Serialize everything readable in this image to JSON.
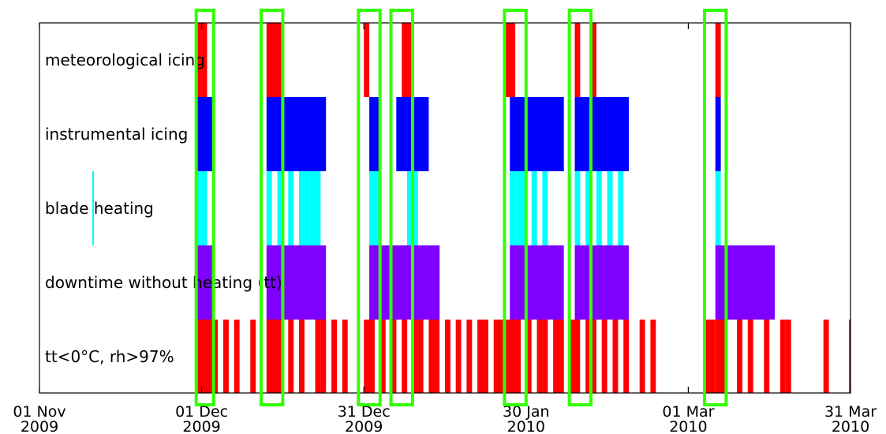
{
  "chart_data": {
    "type": "timeline",
    "x_axis": {
      "range": [
        "2009-11-01",
        "2010-03-31"
      ],
      "ticks": [
        {
          "date": "2009-11-01",
          "line1": "01 Nov",
          "line2": "2009"
        },
        {
          "date": "2009-12-01",
          "line1": "01 Dec",
          "line2": "2009"
        },
        {
          "date": "2009-12-31",
          "line1": "31 Dec",
          "line2": "2009"
        },
        {
          "date": "2010-01-30",
          "line1": "30 Jan",
          "line2": "2010"
        },
        {
          "date": "2010-03-01",
          "line1": "01 Mar",
          "line2": "2010"
        },
        {
          "date": "2010-03-31",
          "line1": "31 Mar",
          "line2": "2010"
        }
      ]
    },
    "grid": false,
    "rows": [
      {
        "label": "meteorological icing",
        "color": "#ff0000",
        "intervals": [
          [
            "2009-11-30",
            "2009-12-01"
          ],
          [
            "2009-12-01",
            "2009-12-02"
          ],
          [
            "2009-12-13",
            "2009-12-16"
          ],
          [
            "2009-12-31",
            "2010-01-01"
          ],
          [
            "2010-01-07",
            "2010-01-09"
          ],
          [
            "2010-01-26",
            "2010-01-28"
          ],
          [
            "2010-02-08",
            "2010-02-09"
          ],
          [
            "2010-02-11",
            "2010-02-12"
          ],
          [
            "2010-03-06",
            "2010-03-07"
          ]
        ]
      },
      {
        "label": "instrumental icing",
        "color": "#0000ff",
        "intervals": [
          [
            "2009-11-30",
            "2009-12-03"
          ],
          [
            "2009-12-13",
            "2009-12-24"
          ],
          [
            "2010-01-01",
            "2010-01-03"
          ],
          [
            "2010-01-06",
            "2010-01-12"
          ],
          [
            "2010-01-27",
            "2010-02-06"
          ],
          [
            "2010-02-08",
            "2010-02-18"
          ],
          [
            "2010-03-06",
            "2010-03-07"
          ]
        ]
      },
      {
        "label": "blade heating",
        "color": "#00ffff",
        "intervals": [
          [
            "2009-11-30",
            "2009-12-01"
          ],
          [
            "2009-12-01",
            "2009-12-02"
          ],
          [
            "2009-12-13",
            "2009-12-14"
          ],
          [
            "2009-12-15",
            "2009-12-16"
          ],
          [
            "2009-12-17",
            "2009-12-18"
          ],
          [
            "2009-12-19",
            "2009-12-20"
          ],
          [
            "2009-12-20",
            "2009-12-21"
          ],
          [
            "2009-12-21",
            "2009-12-22"
          ],
          [
            "2009-12-22",
            "2009-12-23"
          ],
          [
            "2010-01-01",
            "2010-01-02"
          ],
          [
            "2010-01-02",
            "2010-01-03"
          ],
          [
            "2010-01-08",
            "2010-01-09"
          ],
          [
            "2010-01-09",
            "2010-01-10"
          ],
          [
            "2010-01-27",
            "2010-01-28"
          ],
          [
            "2010-01-28",
            "2010-01-29"
          ],
          [
            "2010-01-29",
            "2010-01-30"
          ],
          [
            "2010-01-31",
            "2010-02-01"
          ],
          [
            "2010-02-02",
            "2010-02-03"
          ],
          [
            "2010-02-08",
            "2010-02-09"
          ],
          [
            "2010-02-10",
            "2010-02-11"
          ],
          [
            "2010-02-12",
            "2010-02-13"
          ],
          [
            "2010-02-14",
            "2010-02-15"
          ],
          [
            "2010-02-16",
            "2010-02-17"
          ],
          [
            "2010-03-06",
            "2010-03-07"
          ]
        ]
      },
      {
        "label": "downtime without heating (tt)",
        "color": "#7f00ff",
        "intervals": [
          [
            "2009-11-30",
            "2009-12-03"
          ],
          [
            "2009-12-13",
            "2009-12-24"
          ],
          [
            "2010-01-01",
            "2010-01-14"
          ],
          [
            "2010-01-27",
            "2010-02-06"
          ],
          [
            "2010-02-08",
            "2010-02-18"
          ],
          [
            "2010-03-06",
            "2010-03-17"
          ]
        ]
      },
      {
        "label": "tt<0°C, rh>97%",
        "color": "#ff0000",
        "intervals": [
          [
            "2009-11-30",
            "2009-12-04"
          ],
          [
            "2009-12-05",
            "2009-12-06"
          ],
          [
            "2009-12-07",
            "2009-12-08"
          ],
          [
            "2009-12-10",
            "2009-12-11"
          ],
          [
            "2009-12-13",
            "2009-12-16"
          ],
          [
            "2009-12-17",
            "2009-12-18"
          ],
          [
            "2009-12-19",
            "2009-12-20"
          ],
          [
            "2009-12-22",
            "2009-12-23"
          ],
          [
            "2009-12-23",
            "2009-12-24"
          ],
          [
            "2009-12-25",
            "2009-12-26"
          ],
          [
            "2009-12-27",
            "2009-12-28"
          ],
          [
            "2009-12-31",
            "2010-01-02"
          ],
          [
            "2010-01-03",
            "2010-01-04"
          ],
          [
            "2010-01-05",
            "2010-01-06"
          ],
          [
            "2010-01-07",
            "2010-01-08"
          ],
          [
            "2010-01-09",
            "2010-01-10"
          ],
          [
            "2010-01-10",
            "2010-01-11"
          ],
          [
            "2010-01-12",
            "2010-01-14"
          ],
          [
            "2010-01-15",
            "2010-01-16"
          ],
          [
            "2010-01-17",
            "2010-01-18"
          ],
          [
            "2010-01-19",
            "2010-01-20"
          ],
          [
            "2010-01-21",
            "2010-01-22"
          ],
          [
            "2010-01-22",
            "2010-01-23"
          ],
          [
            "2010-01-24",
            "2010-01-26"
          ],
          [
            "2010-01-26",
            "2010-01-29"
          ],
          [
            "2010-01-30",
            "2010-01-31"
          ],
          [
            "2010-02-01",
            "2010-02-02"
          ],
          [
            "2010-02-02",
            "2010-02-03"
          ],
          [
            "2010-02-04",
            "2010-02-05"
          ],
          [
            "2010-02-05",
            "2010-02-06"
          ],
          [
            "2010-02-07",
            "2010-02-09"
          ],
          [
            "2010-02-10",
            "2010-02-12"
          ],
          [
            "2010-02-13",
            "2010-02-14"
          ],
          [
            "2010-02-15",
            "2010-02-16"
          ],
          [
            "2010-02-17",
            "2010-02-18"
          ],
          [
            "2010-02-20",
            "2010-02-21"
          ],
          [
            "2010-02-22",
            "2010-02-23"
          ],
          [
            "2010-03-04",
            "2010-03-05"
          ],
          [
            "2010-03-05",
            "2010-03-06"
          ],
          [
            "2010-03-06",
            "2010-03-08"
          ],
          [
            "2010-03-10",
            "2010-03-11"
          ],
          [
            "2010-03-12",
            "2010-03-13"
          ],
          [
            "2010-03-15",
            "2010-03-16"
          ],
          [
            "2010-03-18",
            "2010-03-19"
          ],
          [
            "2010-03-19",
            "2010-03-20"
          ],
          [
            "2010-03-26",
            "2010-03-27"
          ],
          [
            "2010-03-31",
            "2010-04-01"
          ]
        ]
      }
    ],
    "highlight_boxes": {
      "color": "#33ff00",
      "intervals": [
        [
          "2009-11-30",
          "2009-12-03"
        ],
        [
          "2009-12-12",
          "2009-12-16"
        ],
        [
          "2009-12-30",
          "2010-01-03"
        ],
        [
          "2010-01-05",
          "2010-01-09"
        ],
        [
          "2010-01-26",
          "2010-01-30"
        ],
        [
          "2010-02-07",
          "2010-02-11"
        ],
        [
          "2010-03-04",
          "2010-03-08"
        ]
      ]
    }
  }
}
